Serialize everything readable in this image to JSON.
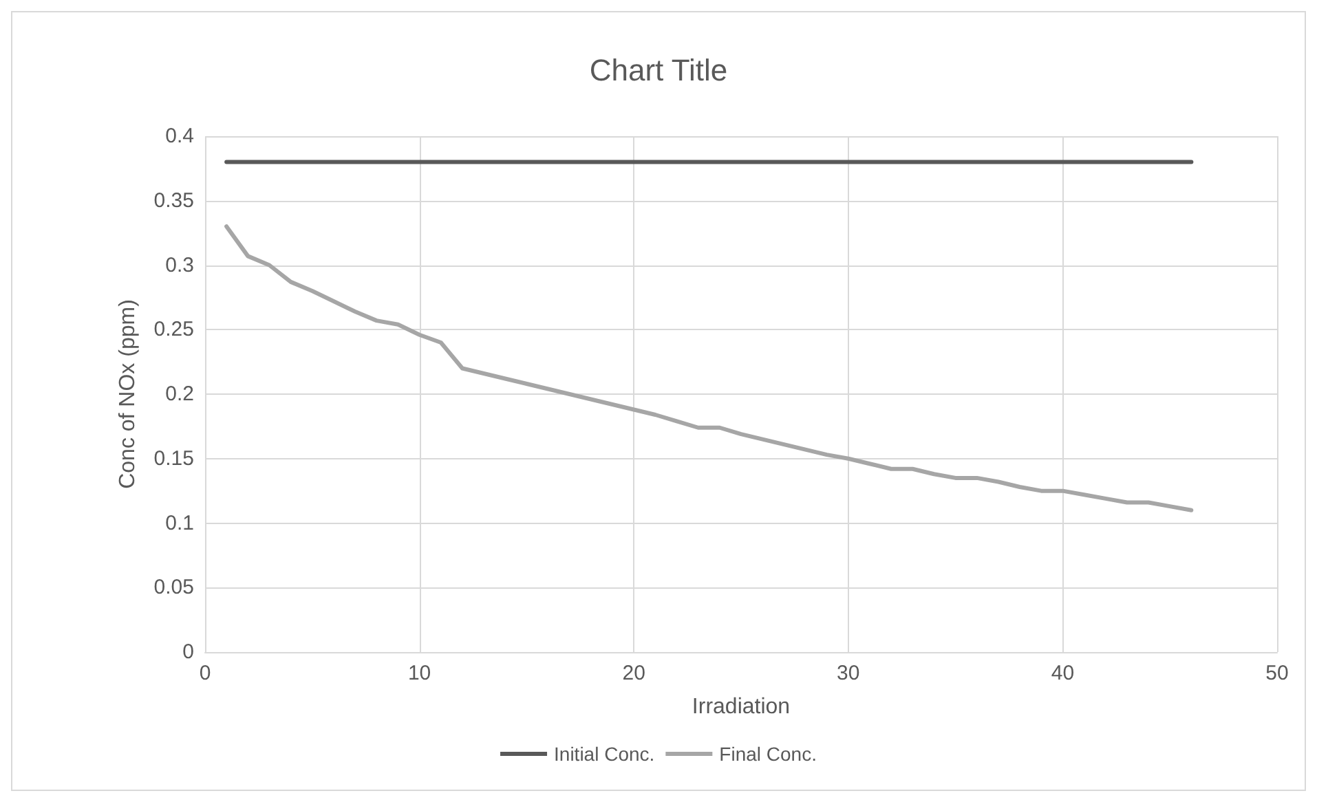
{
  "chart_data": {
    "type": "line",
    "title": "Chart Title",
    "xlabel": "Irradiation",
    "ylabel": "Conc of NOx (ppm)",
    "xlim": [
      0,
      50
    ],
    "xticks": [
      0,
      10,
      20,
      30,
      40,
      50
    ],
    "ylim": [
      0,
      0.4
    ],
    "yticks": [
      0,
      0.05,
      0.1,
      0.15,
      0.2,
      0.25,
      0.3,
      0.35,
      0.4
    ],
    "grid": true,
    "legend": "bottom",
    "marker": "none",
    "line_style": "solid",
    "series": [
      {
        "name": "Initial Conc.",
        "color": "#595959",
        "x": [
          1,
          46
        ],
        "values": [
          0.38,
          0.38
        ]
      },
      {
        "name": "Final Conc.",
        "color": "#a6a6a6",
        "x": [
          1,
          2,
          3,
          4,
          5,
          6,
          7,
          8,
          9,
          10,
          11,
          12,
          13,
          14,
          15,
          16,
          17,
          18,
          19,
          20,
          21,
          22,
          23,
          24,
          25,
          26,
          27,
          28,
          29,
          30,
          31,
          32,
          33,
          34,
          35,
          36,
          37,
          38,
          39,
          40,
          41,
          42,
          43,
          44,
          45,
          46
        ],
        "values": [
          0.33,
          0.307,
          0.3,
          0.287,
          0.28,
          0.272,
          0.264,
          0.257,
          0.254,
          0.246,
          0.24,
          0.22,
          0.216,
          0.212,
          0.208,
          0.204,
          0.2,
          0.196,
          0.192,
          0.188,
          0.184,
          0.179,
          0.174,
          0.174,
          0.169,
          0.165,
          0.161,
          0.157,
          0.153,
          0.15,
          0.146,
          0.142,
          0.142,
          0.138,
          0.135,
          0.135,
          0.132,
          0.128,
          0.125,
          0.125,
          0.122,
          0.119,
          0.116,
          0.116,
          0.113,
          0.11
        ]
      }
    ]
  }
}
